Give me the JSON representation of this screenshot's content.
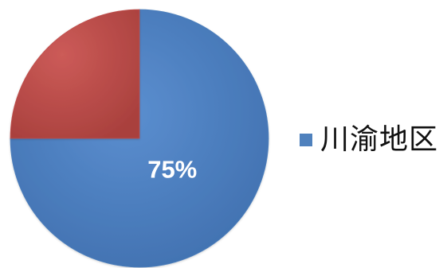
{
  "chart_data": {
    "type": "pie",
    "slices": [
      {
        "value": 75,
        "label": "75%",
        "color": "#4f81bd",
        "legend": "川渝地区"
      },
      {
        "value": 25,
        "label": "",
        "color": "#c0504d"
      }
    ],
    "legend_position": "right"
  }
}
